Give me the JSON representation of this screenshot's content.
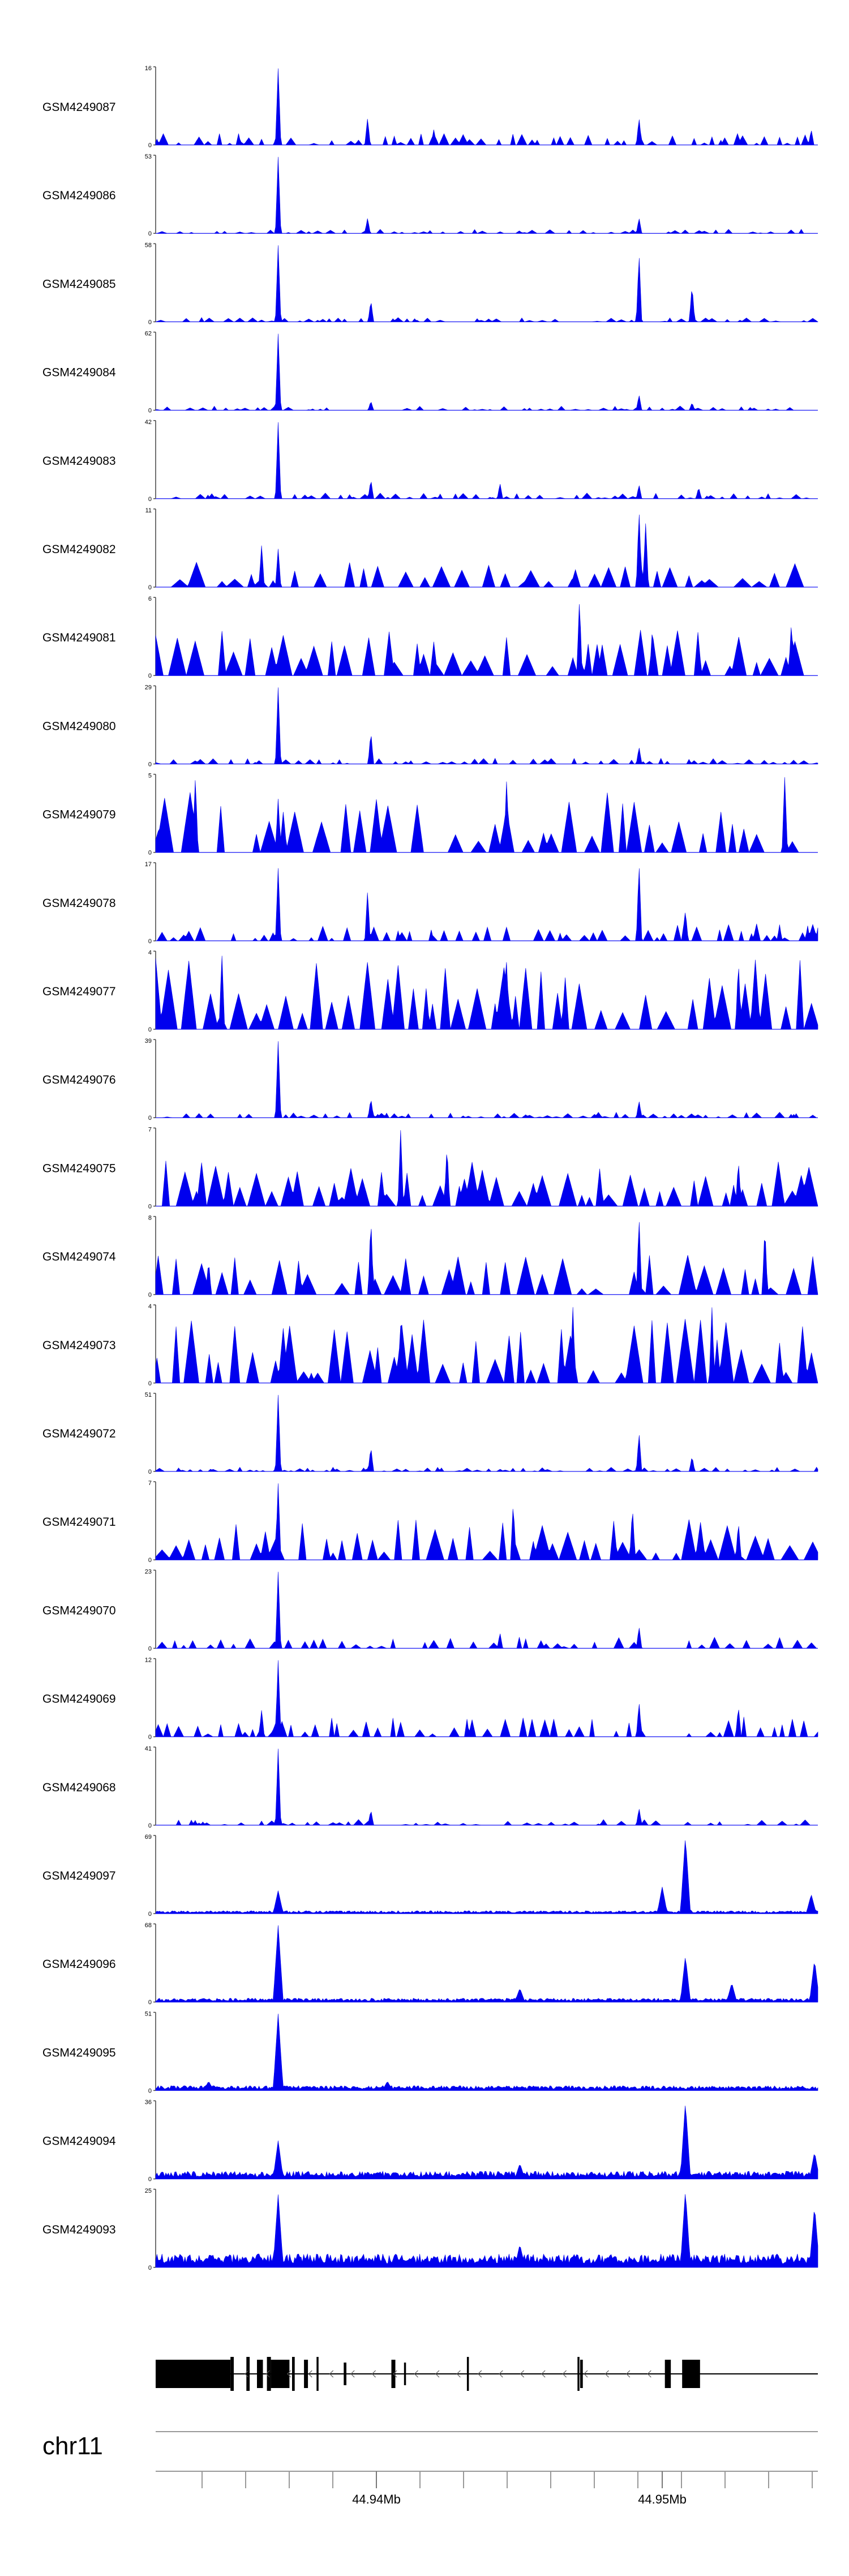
{
  "chart_data": {
    "type": "area",
    "title": "",
    "xlabel": "",
    "ylabel": "",
    "chromosome": "chr11",
    "x_ticks": [
      "44.94Mb",
      "44.95Mb"
    ],
    "fill_color": "#0000ee",
    "baseline_color": "#6666ff",
    "tracks": [
      {
        "name": "GSM4249087",
        "ymax": "16",
        "ymin": "0",
        "style": "narrow",
        "noise": 0.08,
        "density": 0.8,
        "peaks": [
          [
            0.185,
            1.0
          ],
          [
            0.32,
            0.35
          ],
          [
            0.42,
            0.2
          ],
          [
            0.73,
            0.35
          ],
          [
            0.99,
            0.2
          ]
        ]
      },
      {
        "name": "GSM4249086",
        "ymax": "53",
        "ymin": "0",
        "style": "narrow",
        "noise": 0.03,
        "density": 0.8,
        "peaks": [
          [
            0.185,
            1.0
          ],
          [
            0.32,
            0.2
          ],
          [
            0.73,
            0.2
          ]
        ]
      },
      {
        "name": "GSM4249085",
        "ymax": "58",
        "ymin": "0",
        "style": "narrow",
        "noise": 0.03,
        "density": 0.7,
        "peaks": [
          [
            0.185,
            1.0
          ],
          [
            0.325,
            0.28
          ],
          [
            0.73,
            0.88
          ],
          [
            0.81,
            0.48
          ]
        ]
      },
      {
        "name": "GSM4249084",
        "ymax": "62",
        "ymin": "0",
        "style": "narrow",
        "noise": 0.03,
        "density": 0.7,
        "peaks": [
          [
            0.185,
            1.0
          ],
          [
            0.325,
            0.12
          ],
          [
            0.73,
            0.2
          ],
          [
            0.81,
            0.1
          ]
        ]
      },
      {
        "name": "GSM4249083",
        "ymax": "42",
        "ymin": "0",
        "style": "narrow",
        "noise": 0.04,
        "density": 0.8,
        "peaks": [
          [
            0.185,
            1.0
          ],
          [
            0.325,
            0.25
          ],
          [
            0.52,
            0.2
          ],
          [
            0.73,
            0.18
          ],
          [
            0.82,
            0.15
          ]
        ]
      },
      {
        "name": "GSM4249082",
        "ymax": "11",
        "ymin": "0",
        "style": "sparse",
        "noise": 0.18,
        "density": 0.55,
        "peaks": [
          [
            0.16,
            0.55
          ],
          [
            0.185,
            0.5
          ],
          [
            0.73,
            1.0
          ],
          [
            0.74,
            0.85
          ]
        ]
      },
      {
        "name": "GSM4249081",
        "ymax": "6",
        "ymin": "0",
        "style": "sparse",
        "noise": 0.32,
        "density": 0.9,
        "peaks": [
          [
            0.64,
            1.0
          ],
          [
            0.96,
            0.7
          ],
          [
            0.75,
            0.6
          ]
        ]
      },
      {
        "name": "GSM4249080",
        "ymax": "29",
        "ymin": "0",
        "style": "narrow",
        "noise": 0.04,
        "density": 0.8,
        "peaks": [
          [
            0.185,
            1.0
          ],
          [
            0.325,
            0.42
          ],
          [
            0.73,
            0.22
          ]
        ]
      },
      {
        "name": "GSM4249079",
        "ymax": "5",
        "ymin": "0",
        "style": "sparse",
        "noise": 0.45,
        "density": 0.45,
        "peaks": [
          [
            0.06,
            1.0
          ],
          [
            0.53,
            0.95
          ],
          [
            0.95,
            1.0
          ],
          [
            0.185,
            0.7
          ]
        ]
      },
      {
        "name": "GSM4249078",
        "ymax": "17",
        "ymin": "0",
        "style": "narrow",
        "noise": 0.12,
        "density": 0.85,
        "peaks": [
          [
            0.185,
            0.95
          ],
          [
            0.32,
            0.65
          ],
          [
            0.73,
            1.0
          ],
          [
            0.8,
            0.4
          ]
        ]
      },
      {
        "name": "GSM4249077",
        "ymax": "4",
        "ymin": "0",
        "style": "sparse",
        "noise": 0.5,
        "density": 0.95,
        "peaks": [
          [
            0.1,
            1.0
          ],
          [
            0.53,
            0.9
          ],
          [
            0.88,
            0.9
          ]
        ]
      },
      {
        "name": "GSM4249076",
        "ymax": "39",
        "ymin": "0",
        "style": "narrow",
        "noise": 0.04,
        "density": 0.8,
        "peaks": [
          [
            0.185,
            1.0
          ],
          [
            0.325,
            0.25
          ],
          [
            0.73,
            0.22
          ]
        ]
      },
      {
        "name": "GSM4249075",
        "ymax": "7",
        "ymin": "0",
        "style": "sparse",
        "noise": 0.32,
        "density": 0.95,
        "peaks": [
          [
            0.37,
            1.0
          ],
          [
            0.44,
            0.8
          ],
          [
            0.88,
            0.6
          ]
        ]
      },
      {
        "name": "GSM4249074",
        "ymax": "8",
        "ymin": "0",
        "style": "sparse",
        "noise": 0.3,
        "density": 0.5,
        "peaks": [
          [
            0.325,
            1.0
          ],
          [
            0.73,
            1.0
          ],
          [
            0.92,
            0.9
          ],
          [
            0.08,
            0.45
          ]
        ]
      },
      {
        "name": "GSM4249073",
        "ymax": "4",
        "ymin": "0",
        "style": "sparse",
        "noise": 0.45,
        "density": 0.85,
        "peaks": [
          [
            0.63,
            1.0
          ],
          [
            0.84,
            1.0
          ],
          [
            0.37,
            0.75
          ]
        ]
      },
      {
        "name": "GSM4249072",
        "ymax": "51",
        "ymin": "0",
        "style": "narrow",
        "noise": 0.03,
        "density": 0.8,
        "peaks": [
          [
            0.185,
            1.0
          ],
          [
            0.325,
            0.32
          ],
          [
            0.73,
            0.5
          ],
          [
            0.81,
            0.2
          ]
        ]
      },
      {
        "name": "GSM4249071",
        "ymax": "7",
        "ymin": "0",
        "style": "sparse",
        "noise": 0.32,
        "density": 0.75,
        "peaks": [
          [
            0.185,
            1.0
          ],
          [
            0.54,
            0.75
          ],
          [
            0.72,
            0.7
          ],
          [
            0.88,
            0.5
          ]
        ]
      },
      {
        "name": "GSM4249070",
        "ymax": "23",
        "ymin": "0",
        "style": "narrow",
        "noise": 0.08,
        "density": 0.75,
        "peaks": [
          [
            0.185,
            1.0
          ],
          [
            0.73,
            0.28
          ],
          [
            0.52,
            0.2
          ]
        ]
      },
      {
        "name": "GSM4249069",
        "ymax": "12",
        "ymin": "0",
        "style": "narrow",
        "noise": 0.14,
        "density": 0.95,
        "peaks": [
          [
            0.185,
            1.0
          ],
          [
            0.16,
            0.35
          ],
          [
            0.73,
            0.45
          ],
          [
            0.88,
            0.4
          ]
        ]
      },
      {
        "name": "GSM4249068",
        "ymax": "41",
        "ymin": "0",
        "style": "narrow",
        "noise": 0.04,
        "density": 0.7,
        "peaks": [
          [
            0.185,
            1.0
          ],
          [
            0.325,
            0.2
          ],
          [
            0.73,
            0.22
          ]
        ]
      },
      {
        "name": "GSM4249097",
        "ymax": "69",
        "ymin": "0",
        "style": "dense",
        "noise": 0.03,
        "density": 1.0,
        "peaks": [
          [
            0.185,
            0.3
          ],
          [
            0.8,
            1.0
          ],
          [
            0.765,
            0.35
          ],
          [
            0.99,
            0.25
          ]
        ]
      },
      {
        "name": "GSM4249096",
        "ymax": "68",
        "ymin": "0",
        "style": "dense",
        "noise": 0.04,
        "density": 1.0,
        "peaks": [
          [
            0.185,
            1.0
          ],
          [
            0.55,
            0.18
          ],
          [
            0.8,
            0.6
          ],
          [
            0.87,
            0.25
          ],
          [
            0.995,
            0.55
          ]
        ]
      },
      {
        "name": "GSM4249095",
        "ymax": "51",
        "ymin": "0",
        "style": "dense",
        "noise": 0.05,
        "density": 1.0,
        "peaks": [
          [
            0.185,
            1.0
          ],
          [
            0.08,
            0.12
          ],
          [
            0.35,
            0.12
          ]
        ]
      },
      {
        "name": "GSM4249094",
        "ymax": "36",
        "ymin": "0",
        "style": "dense",
        "noise": 0.08,
        "density": 1.0,
        "peaks": [
          [
            0.185,
            0.5
          ],
          [
            0.8,
            1.0
          ],
          [
            0.995,
            0.35
          ],
          [
            0.55,
            0.2
          ]
        ]
      },
      {
        "name": "GSM4249093",
        "ymax": "25",
        "ymin": "0",
        "style": "dense",
        "noise": 0.14,
        "density": 1.0,
        "peaks": [
          [
            0.185,
            0.95
          ],
          [
            0.8,
            1.0
          ],
          [
            0.995,
            0.8
          ],
          [
            0.55,
            0.3
          ]
        ]
      }
    ]
  }
}
